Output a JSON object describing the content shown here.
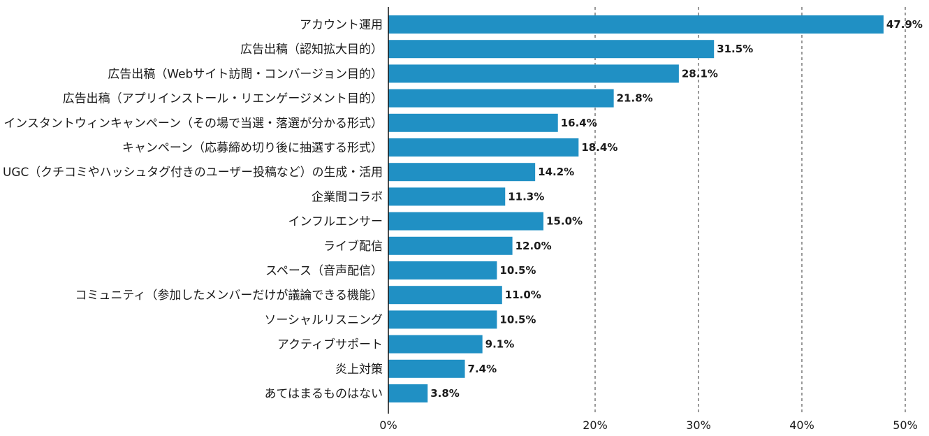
{
  "chart_data": {
    "type": "bar",
    "orientation": "horizontal",
    "title": "",
    "xlabel": "",
    "ylabel": "",
    "xlim": [
      0,
      50
    ],
    "grid": true,
    "grid_style": "dashed",
    "legend": "none",
    "bar_color": "#2090c4",
    "categories": [
      "アカウント運用",
      "広告出稿（認知拡大目的）",
      "広告出稿（Webサイト訪問・コンバージョン目的）",
      "広告出稿（アプリインストール・リエンゲージメント目的）",
      "インスタントウィンキャンペーン（その場で当選・落選が分かる形式）",
      "キャンペーン（応募締め切り後に抽選する形式）",
      "UGC（クチコミやハッシュタグ付きのユーザー投稿など）の生成・活用",
      "企業間コラボ",
      "インフルエンサー",
      "ライブ配信",
      "スペース（音声配信）",
      "コミュニティ（参加したメンバーだけが議論できる機能）",
      "ソーシャルリスニング",
      "アクティブサポート",
      "炎上対策",
      "あてはまるものはない"
    ],
    "values": [
      47.9,
      31.5,
      28.1,
      21.8,
      16.4,
      18.4,
      14.2,
      11.3,
      15.0,
      12.0,
      10.5,
      11.0,
      10.5,
      9.1,
      7.4,
      3.8
    ],
    "value_labels": [
      "47.9%",
      "31.5%",
      "28.1%",
      "21.8%",
      "16.4%",
      "18.4%",
      "14.2%",
      "11.3%",
      "15.0%",
      "12.0%",
      "10.5%",
      "11.0%",
      "10.5%",
      "9.1%",
      "7.4%",
      "3.8%"
    ],
    "ticks": [
      0,
      20,
      30,
      40,
      50
    ],
    "tick_labels": [
      "0%",
      "20%",
      "30%",
      "40%",
      "50%"
    ]
  }
}
